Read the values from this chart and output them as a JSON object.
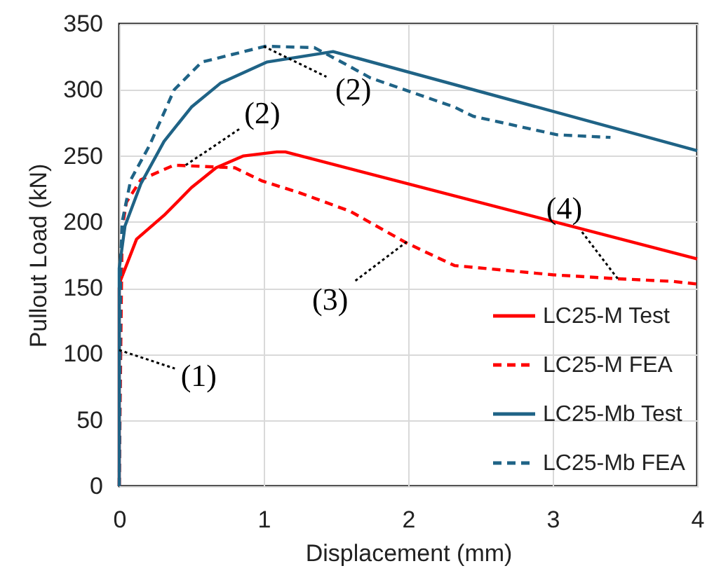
{
  "chart_data": {
    "type": "line",
    "xlabel": "Displacement  (mm)",
    "ylabel": "Pullout Load (kN)",
    "xlim": [
      0,
      4
    ],
    "xticks": [
      0,
      1,
      2,
      3,
      4
    ],
    "ylim": [
      0,
      350
    ],
    "yticks": [
      0,
      50,
      100,
      150,
      200,
      250,
      300,
      350
    ],
    "grid": true,
    "legend": "bottom right",
    "marker": "none",
    "series": [
      {
        "name": "LC25-M Test",
        "color": "#ff0000",
        "line_style": "solid",
        "x": [
          0,
          0,
          0.01,
          0.12,
          0.31,
          0.5,
          0.67,
          0.86,
          1.09,
          1.15,
          4
        ],
        "values": [
          0,
          150,
          156,
          187,
          205,
          226,
          241,
          250,
          253,
          253,
          172
        ]
      },
      {
        "name": "LC25-M FEA",
        "color": "#ff0000",
        "line_style": "dashed",
        "x": [
          0,
          0.02,
          0.05,
          0.15,
          0.38,
          0.8,
          0.99,
          1.25,
          1.6,
          1.99,
          2.32,
          3.0,
          3.45,
          3.83,
          4
        ],
        "values": [
          0,
          195,
          215,
          232,
          243,
          241,
          231,
          222,
          208,
          184,
          167,
          160,
          157,
          155,
          153
        ]
      },
      {
        "name": "LC25-Mb Test",
        "color": "#1f6386",
        "line_style": "solid",
        "x": [
          0,
          0,
          0.04,
          0.15,
          0.31,
          0.5,
          0.7,
          1.02,
          1.48,
          4
        ],
        "values": [
          0,
          165,
          197,
          229,
          261,
          287,
          305,
          321,
          329,
          254
        ]
      },
      {
        "name": "LC25-Mb FEA",
        "color": "#1f6386",
        "line_style": "dashed",
        "x": [
          0,
          0.01,
          0.02,
          0.08,
          0.21,
          0.38,
          0.57,
          1.01,
          1.35,
          1.54,
          1.74,
          2.32,
          2.45,
          3.03,
          3.4
        ],
        "values": [
          0,
          170,
          200,
          232,
          258,
          300,
          321,
          333,
          332,
          321,
          309,
          287,
          280,
          266,
          264
        ]
      }
    ],
    "annotations": [
      {
        "text": "(1)",
        "x": 0,
        "y": 103
      },
      {
        "text": "(2)",
        "x": 1.0,
        "y": 333
      },
      {
        "text": "(2)",
        "x": 0.46,
        "y": 243
      },
      {
        "text": "(3)",
        "x": 1.99,
        "y": 185
      },
      {
        "text": "(4)",
        "x": 3.45,
        "y": 157
      }
    ]
  }
}
